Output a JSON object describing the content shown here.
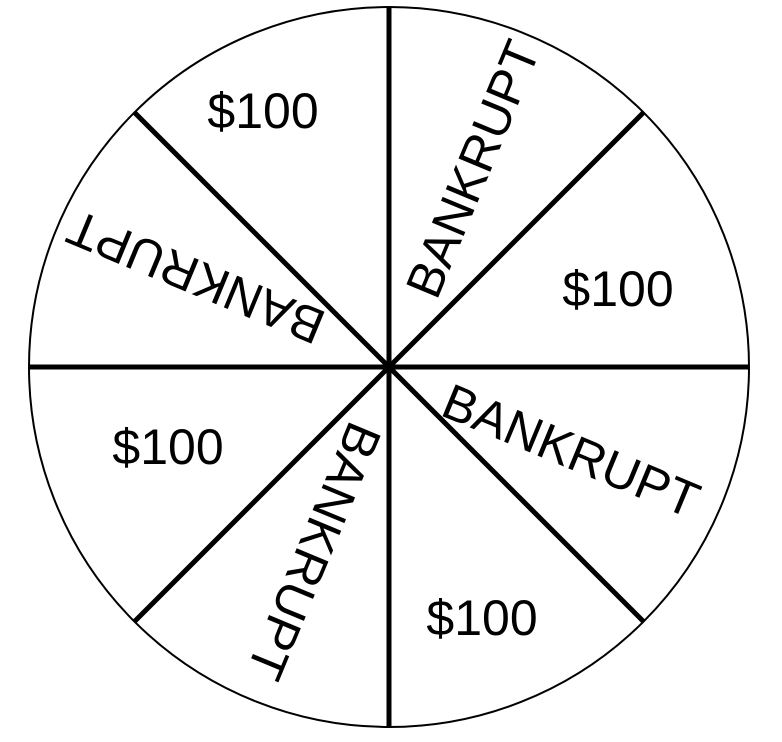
{
  "wheel": {
    "segments": [
      {
        "label": "BANKRUPT"
      },
      {
        "label": "$100"
      },
      {
        "label": "BANKRUPT"
      },
      {
        "label": "$100"
      },
      {
        "label": "BANKRUPT"
      },
      {
        "label": "$100"
      },
      {
        "label": "BANKRUPT"
      },
      {
        "label": "$100"
      }
    ],
    "colors": {
      "fill": "#ffffff",
      "stroke": "#000000",
      "text": "#000000"
    }
  }
}
